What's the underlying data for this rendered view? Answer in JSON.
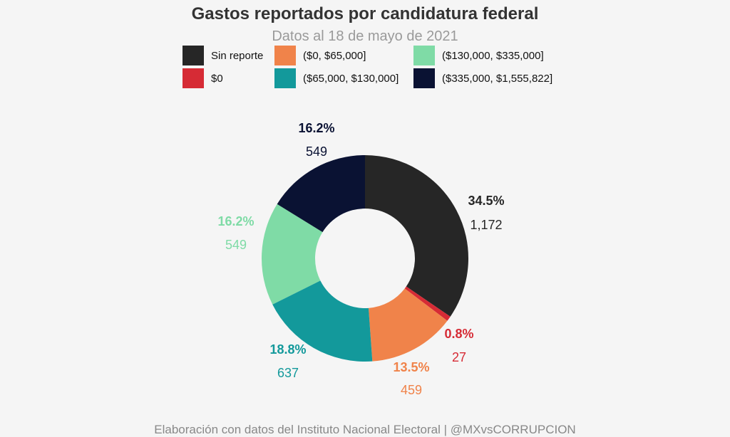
{
  "chart_data": {
    "type": "pie",
    "title": "Gastos reportados por candidatura federal",
    "subtitle": "Datos al 18 de mayo de 2021",
    "caption": "Elaboración con datos del Instituto Nacional Electoral | @MXvsCORRUPCION",
    "legend_position": "top",
    "slices": [
      {
        "name": "Sin reporte",
        "value": 1172,
        "pct_label": "34.5%",
        "count_label": "1,172",
        "color": "#262626"
      },
      {
        "name": "$0",
        "value": 27,
        "pct_label": "0.8%",
        "count_label": "27",
        "color": "#d62b35"
      },
      {
        "name": "($0, $65,000]",
        "value": 459,
        "pct_label": "13.5%",
        "count_label": "459",
        "color": "#f0834a"
      },
      {
        "name": "($65,000, $130,000]",
        "value": 637,
        "pct_label": "18.8%",
        "count_label": "637",
        "color": "#13999b"
      },
      {
        "name": "($130,000, $335,000]",
        "value": 549,
        "pct_label": "16.2%",
        "count_label": "549",
        "color": "#7fdba6"
      },
      {
        "name": "($335,000, $1,555,822]",
        "value": 549,
        "pct_label": "16.2%",
        "count_label": "549",
        "color": "#0a1233"
      }
    ]
  }
}
